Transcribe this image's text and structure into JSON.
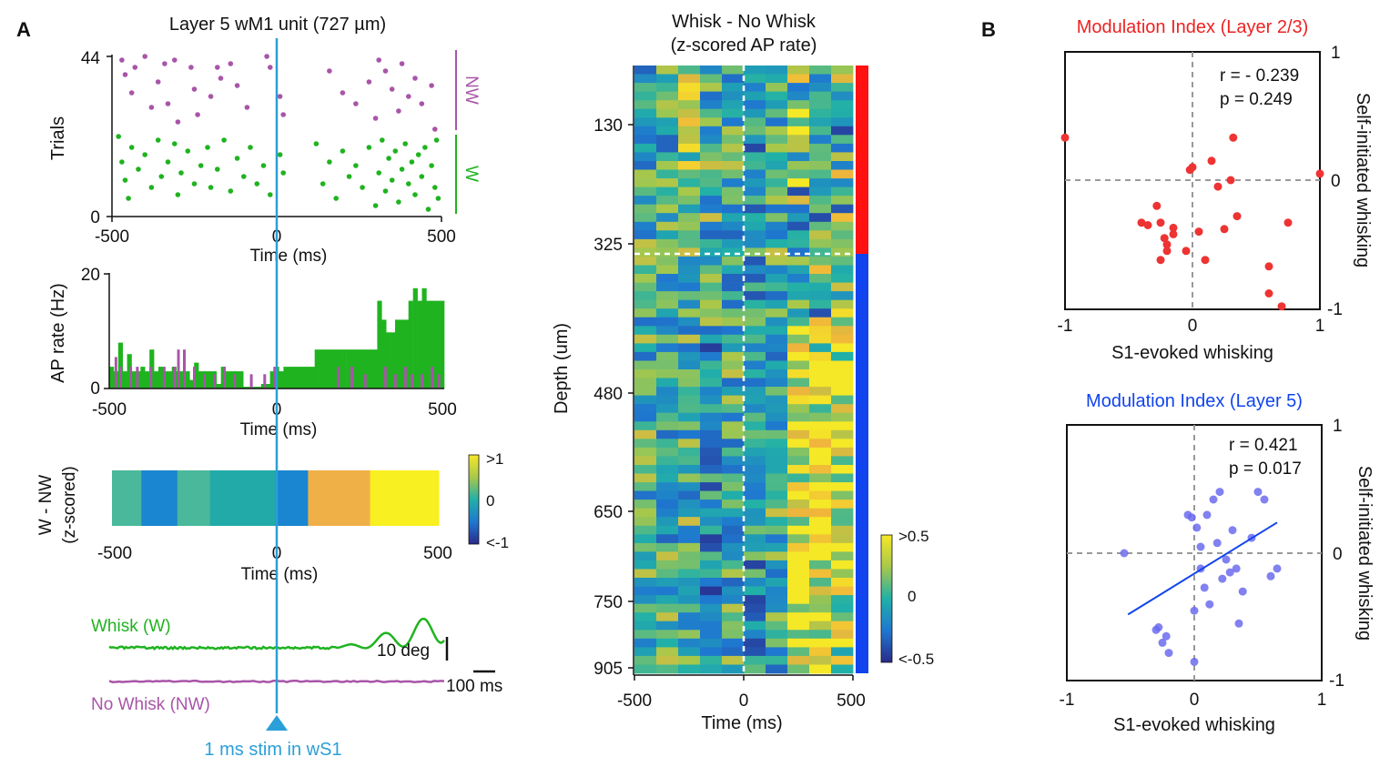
{
  "panel_labels": {
    "a": "A",
    "b": "B"
  },
  "colors": {
    "whisk": "#1fb31f",
    "nowhisk": "#a855a8",
    "stim": "#2a9fd8",
    "layer23": "#ee2222",
    "layer5": "#1144ee",
    "scatter_red": "#ee3333",
    "scatter_blue": "#6b6bee",
    "axis": "#111111",
    "dash": "#999999"
  },
  "raster": {
    "title": "Layer 5 wM1 unit (727 µm)",
    "ylabel": "Trials",
    "xlabel": "Time (ms)",
    "yticks": [
      "0",
      "44"
    ],
    "xticks": [
      "-500",
      "0",
      "500"
    ],
    "label_nw": "NW",
    "label_w": "W"
  },
  "psth": {
    "ylabel": "AP rate (Hz)",
    "xlabel": "Time (ms)",
    "yticks": [
      "0",
      "20"
    ],
    "xticks": [
      "-500",
      "0",
      "500"
    ]
  },
  "diffbar": {
    "ylabel_line1": "W - NW",
    "ylabel_line2": "(z-scored)",
    "xlabel": "Time (ms)",
    "xticks": [
      "-500",
      "0",
      "500"
    ],
    "cbar_ticks": [
      ">1",
      "0",
      "<-1"
    ]
  },
  "traces": {
    "whisk_label": "Whisk (W)",
    "nowhisk_label": "No Whisk (NW)",
    "scale_deg": "10 deg",
    "scale_ms": "100 ms",
    "stim_label": "1 ms stim in wS1"
  },
  "heatmap": {
    "title_line1": "Whisk - No Whisk",
    "title_line2": "(z-scored AP rate)",
    "ylabel": "Depth (um)",
    "xlabel": "Time (ms)",
    "yticks": [
      "130",
      "325",
      "480",
      "650",
      "750",
      "905"
    ],
    "xticks": [
      "-500",
      "0",
      "500"
    ],
    "cbar_ticks": [
      ">0.5",
      "0",
      "<-0.5"
    ]
  },
  "scatter_top": {
    "title": "Modulation Index (Layer 2/3)",
    "xlabel": "S1-evoked whisking",
    "ylabel": "Self-initiated whisking",
    "r_text": "r = - 0.239",
    "p_text": "p = 0.249",
    "xticks": [
      "-1",
      "0",
      "1"
    ],
    "yticks": [
      "1",
      "0",
      "-1"
    ]
  },
  "scatter_bottom": {
    "title": "Modulation Index (Layer 5)",
    "xlabel": "S1-evoked whisking",
    "ylabel": "Self-initiated whisking",
    "r_text": "r = 0.421",
    "p_text": "p = 0.017",
    "xticks": [
      "-1",
      "0",
      "1"
    ],
    "yticks": [
      "1",
      "0",
      "-1"
    ]
  },
  "chart_data": [
    {
      "type": "scatter",
      "title": "Layer 5 wM1 unit (727 µm)",
      "xlabel": "Time (ms)",
      "ylabel": "Trials",
      "xlim": [
        -500,
        500
      ],
      "ylim": [
        0,
        44
      ],
      "series": [
        {
          "name": "NW",
          "trials": [
            23,
            44
          ],
          "points": [
            [
              -470,
              43
            ],
            [
              -460,
              39
            ],
            [
              -440,
              34
            ],
            [
              -430,
              41
            ],
            [
              -400,
              44
            ],
            [
              -380,
              30
            ],
            [
              -360,
              37
            ],
            [
              -340,
              42
            ],
            [
              -330,
              31
            ],
            [
              -310,
              43
            ],
            [
              -300,
              26
            ],
            [
              -260,
              41
            ],
            [
              -250,
              35
            ],
            [
              -240,
              28
            ],
            [
              -200,
              33
            ],
            [
              -180,
              41
            ],
            [
              -170,
              38
            ],
            [
              -140,
              42
            ],
            [
              -120,
              36
            ],
            [
              -90,
              30
            ],
            [
              -30,
              44
            ],
            [
              -20,
              41
            ],
            [
              10,
              33
            ],
            [
              20,
              28
            ],
            [
              160,
              40
            ],
            [
              200,
              34
            ],
            [
              240,
              31
            ],
            [
              280,
              37
            ],
            [
              300,
              27
            ],
            [
              310,
              43
            ],
            [
              330,
              40
            ],
            [
              350,
              35
            ],
            [
              370,
              29
            ],
            [
              380,
              42
            ],
            [
              400,
              33
            ],
            [
              420,
              38
            ],
            [
              440,
              31
            ],
            [
              470,
              36
            ],
            [
              480,
              24
            ]
          ]
        },
        {
          "name": "W",
          "trials": [
            0,
            22
          ],
          "points": [
            [
              -480,
              22
            ],
            [
              -470,
              15
            ],
            [
              -460,
              10
            ],
            [
              -450,
              5
            ],
            [
              -440,
              19
            ],
            [
              -420,
              13
            ],
            [
              -400,
              17
            ],
            [
              -380,
              8
            ],
            [
              -360,
              21
            ],
            [
              -350,
              11
            ],
            [
              -330,
              15
            ],
            [
              -310,
              20
            ],
            [
              -300,
              6
            ],
            [
              -290,
              12
            ],
            [
              -270,
              18
            ],
            [
              -250,
              9
            ],
            [
              -230,
              14
            ],
            [
              -210,
              19
            ],
            [
              -200,
              8
            ],
            [
              -180,
              13
            ],
            [
              -160,
              21
            ],
            [
              -140,
              7
            ],
            [
              -120,
              16
            ],
            [
              -100,
              11
            ],
            [
              -80,
              19
            ],
            [
              -60,
              9
            ],
            [
              -40,
              14
            ],
            [
              -20,
              6
            ],
            [
              10,
              17
            ],
            [
              20,
              12
            ],
            [
              120,
              20
            ],
            [
              140,
              9
            ],
            [
              160,
              15
            ],
            [
              180,
              5
            ],
            [
              200,
              18
            ],
            [
              220,
              11
            ],
            [
              240,
              14
            ],
            [
              260,
              8
            ],
            [
              280,
              19
            ],
            [
              300,
              3
            ],
            [
              310,
              12
            ],
            [
              320,
              21
            ],
            [
              330,
              7
            ],
            [
              340,
              16
            ],
            [
              350,
              10
            ],
            [
              360,
              18
            ],
            [
              370,
              4
            ],
            [
              380,
              13
            ],
            [
              390,
              20
            ],
            [
              400,
              9
            ],
            [
              410,
              15
            ],
            [
              420,
              6
            ],
            [
              430,
              17
            ],
            [
              440,
              11
            ],
            [
              450,
              19
            ],
            [
              460,
              2
            ],
            [
              470,
              14
            ],
            [
              480,
              8
            ],
            [
              485,
              21
            ],
            [
              490,
              5
            ]
          ]
        }
      ]
    },
    {
      "type": "bar",
      "xlabel": "Time (ms)",
      "ylabel": "AP rate (Hz)",
      "ylim": [
        0,
        20
      ],
      "bin_edges_ms": [
        -500,
        500
      ],
      "series": [
        {
          "name": "W",
          "values": [
            3.8,
            3,
            8,
            3,
            6,
            3,
            3,
            3.8,
            3,
            6.8,
            3,
            3.8,
            3,
            3,
            3.8,
            3,
            3,
            3,
            1.5,
            4.5,
            3,
            3,
            3,
            3,
            0.8,
            3.8,
            3,
            3,
            3,
            3,
            0.3,
            0.3,
            0.3,
            0.3,
            0.8,
            0.8,
            3,
            3.8,
            3,
            3.8,
            3.8,
            3.8,
            3.8,
            3.8,
            3.8,
            3.8,
            6.8,
            6.8,
            6.8,
            6.8,
            6.8,
            6.8,
            6.8,
            6.8,
            6.8,
            6.8,
            6.8,
            6.8,
            6.8,
            6.8,
            15.3,
            12,
            9.8,
            9.8,
            12,
            12,
            12,
            15.3,
            17.5,
            15.3,
            17.5,
            15.3,
            15.3,
            15.3,
            15.3
          ]
        },
        {
          "name": "NW",
          "values": [
            0,
            5.5,
            0,
            0,
            0,
            0,
            0,
            0,
            0,
            0,
            0,
            0,
            0,
            0,
            0,
            6.8,
            0,
            0,
            0,
            0,
            0,
            0,
            0,
            0,
            0,
            0,
            0,
            0,
            0,
            0,
            0,
            0,
            0,
            0,
            0,
            0,
            0,
            0,
            0,
            0,
            0,
            0,
            0,
            0,
            0,
            0,
            0,
            0,
            0,
            0,
            0,
            0,
            0,
            0,
            0,
            0,
            0,
            0,
            0,
            0,
            0,
            0,
            0,
            0,
            0,
            0,
            0,
            0,
            0,
            0,
            0,
            0,
            0,
            0,
            0
          ]
        }
      ]
    },
    {
      "type": "heatmap",
      "title": "W - NW (z-scored)",
      "xlabel": "Time (ms)",
      "segments_ms": [
        [
          -500,
          -410
        ],
        [
          -410,
          -300
        ],
        [
          -300,
          -200
        ],
        [
          -200,
          -70
        ],
        [
          -70,
          0
        ],
        [
          0,
          100
        ],
        [
          100,
          290
        ],
        [
          290,
          500
        ]
      ],
      "values": [
        0.2,
        -0.7,
        0.3,
        0,
        0,
        -0.5,
        0.75,
        1
      ],
      "color_range": [
        -1,
        1
      ]
    },
    {
      "type": "heatmap",
      "title": "Whisk - No Whisk (z-scored AP rate)",
      "xlabel": "Time (ms)",
      "ylabel": "Depth (um)",
      "xlim": [
        -500,
        500
      ],
      "depth_ticks": [
        130,
        325,
        480,
        650,
        750,
        905
      ],
      "layer_boundary_um": 325,
      "color_range": [
        -0.5,
        0.5
      ],
      "n_units": 70,
      "n_bins": 10
    },
    {
      "type": "scatter",
      "title": "Modulation Index (Layer 2/3)",
      "xlabel": "S1-evoked whisking",
      "ylabel": "Self-initiated whisking",
      "xlim": [
        -1,
        1
      ],
      "ylim": [
        -1,
        1
      ],
      "points": [
        [
          -1,
          0.33
        ],
        [
          1,
          0.05
        ],
        [
          -0.4,
          -0.33
        ],
        [
          -0.35,
          -0.35
        ],
        [
          -0.28,
          -0.2
        ],
        [
          -0.25,
          -0.33
        ],
        [
          -0.22,
          -0.45
        ],
        [
          -0.2,
          -0.5
        ],
        [
          -0.25,
          -0.62
        ],
        [
          -0.15,
          -0.37
        ],
        [
          -0.2,
          -0.55
        ],
        [
          -0.15,
          -0.42
        ],
        [
          -0.05,
          -0.55
        ],
        [
          -0.02,
          0.08
        ],
        [
          0,
          0.1
        ],
        [
          0.05,
          -0.4
        ],
        [
          0.1,
          -0.62
        ],
        [
          0.15,
          0.15
        ],
        [
          0.2,
          -0.05
        ],
        [
          0.25,
          -0.38
        ],
        [
          0.3,
          0
        ],
        [
          0.32,
          0.33
        ],
        [
          0.35,
          -0.28
        ],
        [
          0.6,
          -0.67
        ],
        [
          0.6,
          -0.88
        ],
        [
          0.7,
          -0.98
        ],
        [
          0.75,
          -0.33
        ]
      ]
    },
    {
      "type": "scatter",
      "title": "Modulation Index (Layer 5)",
      "xlabel": "S1-evoked whisking",
      "ylabel": "Self-initiated whisking",
      "xlim": [
        -1,
        1
      ],
      "ylim": [
        -1,
        1
      ],
      "points": [
        [
          -0.55,
          0
        ],
        [
          -0.3,
          -0.6
        ],
        [
          -0.28,
          -0.58
        ],
        [
          -0.22,
          -0.65
        ],
        [
          -0.25,
          -0.7
        ],
        [
          -0.2,
          -0.78
        ],
        [
          -0.05,
          0.3
        ],
        [
          0,
          -0.45
        ],
        [
          0.02,
          0.2
        ],
        [
          0.05,
          -0.12
        ],
        [
          0.08,
          -0.27
        ],
        [
          0.1,
          0.3
        ],
        [
          0.12,
          -0.4
        ],
        [
          0.15,
          0.42
        ],
        [
          0.18,
          0.08
        ],
        [
          0.2,
          0.48
        ],
        [
          0.22,
          -0.2
        ],
        [
          0.25,
          -0.05
        ],
        [
          0.3,
          0.18
        ],
        [
          0.33,
          -0.12
        ],
        [
          0.35,
          -0.55
        ],
        [
          0.38,
          -0.3
        ],
        [
          0.45,
          0.12
        ],
        [
          0.5,
          0.48
        ],
        [
          0.55,
          0.42
        ],
        [
          0.6,
          -0.18
        ],
        [
          0.65,
          -0.12
        ],
        [
          -0.02,
          0.28
        ],
        [
          0.05,
          0.05
        ],
        [
          0.28,
          -0.15
        ],
        [
          0,
          -0.85
        ]
      ],
      "regression": {
        "x": [
          -0.52,
          0.65
        ],
        "y": [
          -0.48,
          0.24
        ]
      }
    }
  ]
}
